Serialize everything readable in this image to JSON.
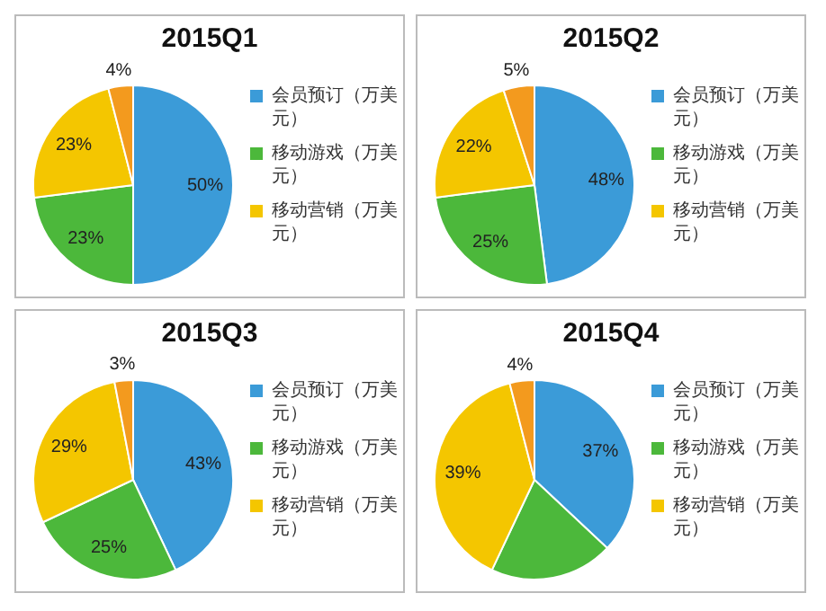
{
  "chart_data": [
    {
      "type": "pie",
      "title": "2015Q1",
      "categories": [
        "会员预订（万美元）",
        "移动游戏（万美元）",
        "移动营销（万美元）",
        null
      ],
      "values": [
        50,
        23,
        23,
        4
      ],
      "colors": [
        "#3b9bd8",
        "#4cb83b",
        "#f4c600",
        "#f39a1e"
      ],
      "value_labels": [
        "50%",
        "23%",
        "23%",
        "4%"
      ],
      "legend": "right"
    },
    {
      "type": "pie",
      "title": "2015Q2",
      "categories": [
        "会员预订（万美元）",
        "移动游戏（万美元）",
        "移动营销（万美元）",
        null
      ],
      "values": [
        48,
        25,
        22,
        5
      ],
      "colors": [
        "#3b9bd8",
        "#4cb83b",
        "#f4c600",
        "#f39a1e"
      ],
      "value_labels": [
        "48%",
        "25%",
        "22%",
        "5%"
      ],
      "legend": "right"
    },
    {
      "type": "pie",
      "title": "2015Q3",
      "categories": [
        "会员预订（万美元）",
        "移动游戏（万美元）",
        "移动营销（万美元）",
        null
      ],
      "values": [
        43,
        25,
        29,
        3
      ],
      "colors": [
        "#3b9bd8",
        "#4cb83b",
        "#f4c600",
        "#f39a1e"
      ],
      "value_labels": [
        "43%",
        "25%",
        "29%",
        "3%"
      ],
      "legend": "right"
    },
    {
      "type": "pie",
      "title": "2015Q4",
      "categories": [
        "会员预订（万美元）",
        "移动游戏（万美元）",
        "移动营销（万美元）",
        null
      ],
      "values": [
        37,
        20,
        39,
        4
      ],
      "colors": [
        "#3b9bd8",
        "#4cb83b",
        "#f4c600",
        "#f39a1e"
      ],
      "value_labels": [
        "37%",
        null,
        "39%",
        "4%"
      ],
      "legend": "right"
    }
  ]
}
